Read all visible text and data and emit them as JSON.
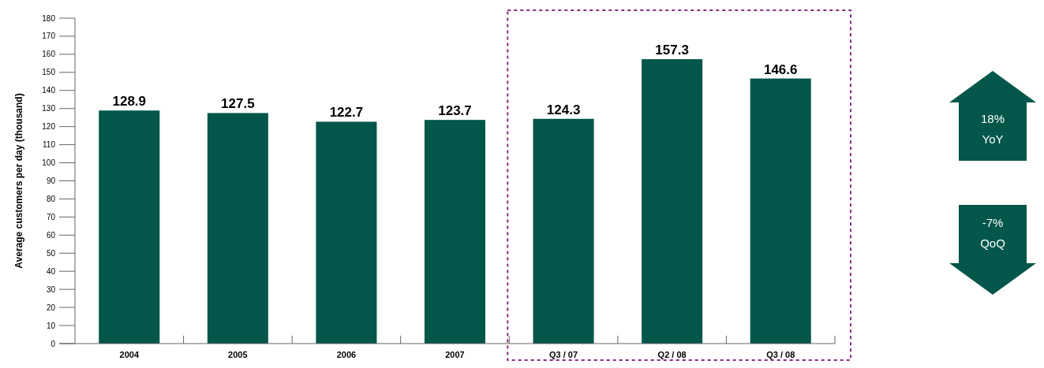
{
  "chart_data": {
    "type": "bar",
    "ylabel": "Average customers per day (thousand)",
    "categories": [
      "2004",
      "2005",
      "2006",
      "2007",
      "Q3 / 07",
      "Q2 / 08",
      "Q3 / 08"
    ],
    "values": [
      128.9,
      127.5,
      122.7,
      123.7,
      124.3,
      157.3,
      146.6
    ],
    "color": "#02564a",
    "ylim": [
      0,
      180
    ],
    "yticks": [
      0,
      10,
      20,
      30,
      40,
      50,
      60,
      70,
      80,
      90,
      100,
      110,
      120,
      130,
      140,
      150,
      160,
      170,
      180
    ],
    "data_labels": true,
    "grid": false,
    "annotations": [
      "18% YoY",
      "-7% QoQ"
    ]
  }
}
